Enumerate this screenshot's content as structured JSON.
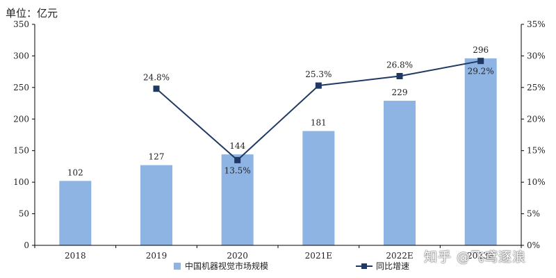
{
  "chart_data": {
    "type": "bar",
    "unit_label": "单位：亿元",
    "categories": [
      "2018",
      "2019",
      "2020",
      "2021E",
      "2022E",
      "2023E"
    ],
    "series": [
      {
        "name": "中国机器视觉市场规模",
        "type": "bar",
        "axis": "left",
        "values": [
          102,
          127,
          144,
          181,
          229,
          296
        ],
        "labels": [
          "102",
          "127",
          "144",
          "181",
          "229",
          "296"
        ]
      },
      {
        "name": "同比增速",
        "type": "line",
        "axis": "right",
        "values": [
          null,
          24.8,
          13.5,
          25.3,
          26.8,
          29.2
        ],
        "labels": [
          "",
          "24.8%",
          "13.5%",
          "25.3%",
          "26.8%",
          "29.2%"
        ]
      }
    ],
    "y_left": {
      "min": 0,
      "max": 350,
      "ticks": [
        "0",
        "50",
        "100",
        "150",
        "200",
        "250",
        "300",
        "350"
      ]
    },
    "y_right": {
      "min": 0,
      "max": 35,
      "ticks": [
        "0%",
        "5%",
        "10%",
        "15%",
        "20%",
        "25%",
        "30%",
        "35%"
      ]
    },
    "grid": false,
    "legend": "bottom",
    "colors": {
      "bar": "#8eb4e3",
      "line": "#1f3864",
      "axis": "#000000"
    }
  },
  "watermark": "知乎 @飞鸢逐浪"
}
